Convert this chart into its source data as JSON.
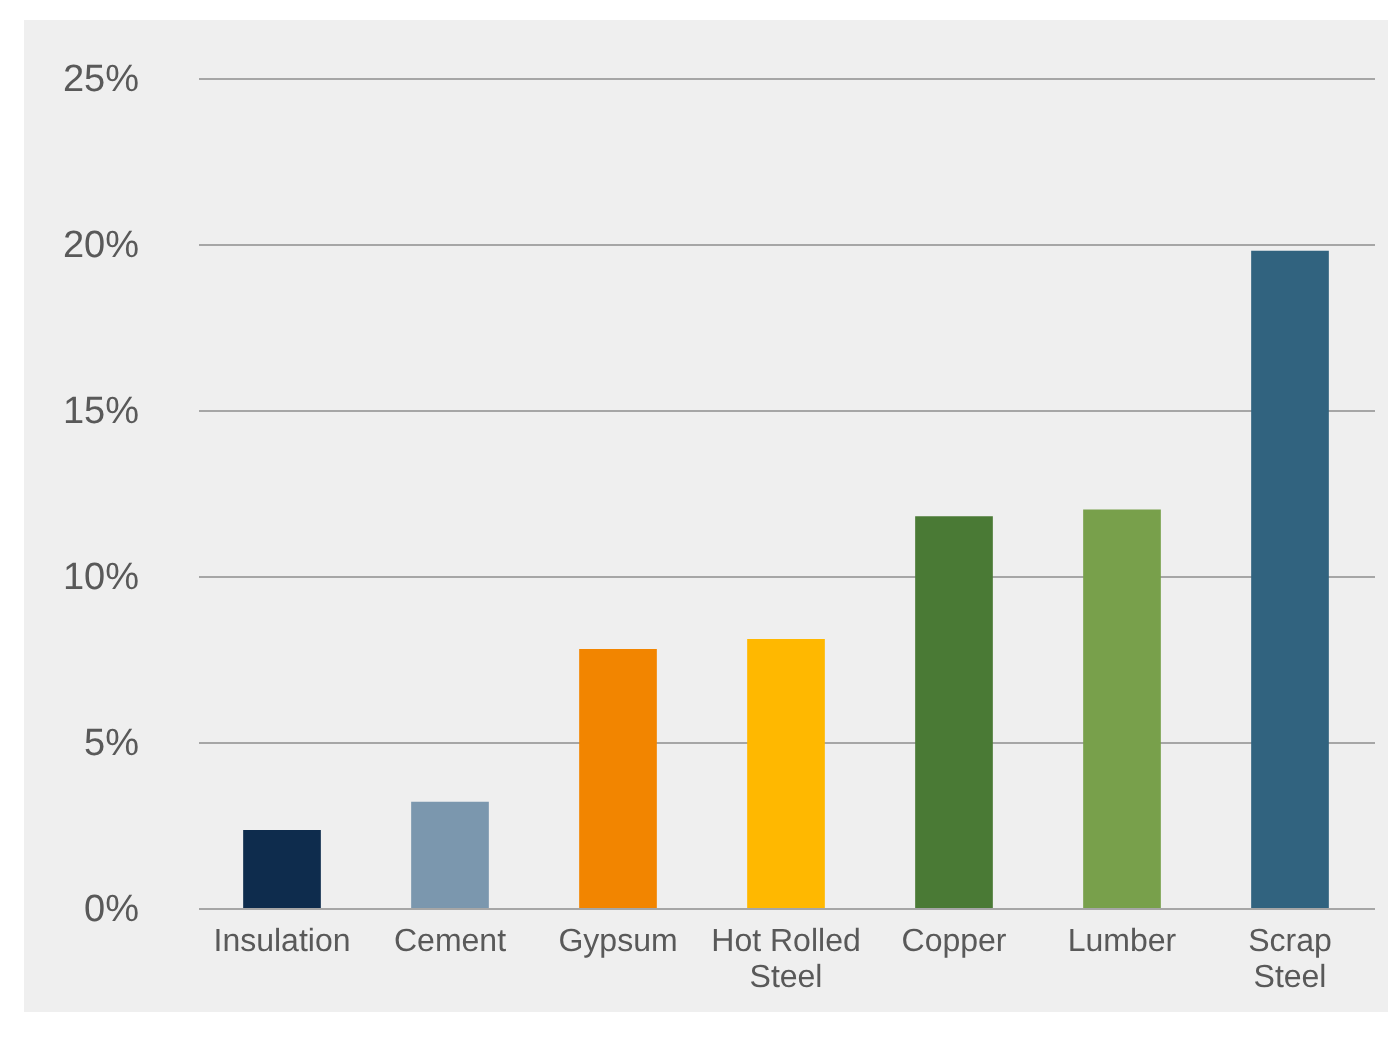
{
  "chart_data": {
    "type": "bar",
    "categories": [
      "Insulation",
      "Cement",
      "Gypsum",
      "Hot Rolled Steel",
      "Copper",
      "Lumber",
      "Scrap Steel"
    ],
    "values": [
      2.35,
      3.2,
      7.8,
      8.1,
      11.8,
      12.0,
      19.8
    ],
    "colors": [
      "#0e2c4d",
      "#7b97ae",
      "#f28500",
      "#ffb800",
      "#4a7a35",
      "#78a04b",
      "#31637f"
    ],
    "ylim": [
      0,
      25
    ],
    "yticks": [
      {
        "value": 0,
        "label": "0%"
      },
      {
        "value": 5,
        "label": "5%"
      },
      {
        "value": 10,
        "label": "10%"
      },
      {
        "value": 15,
        "label": "15%"
      },
      {
        "value": 20,
        "label": "20%"
      },
      {
        "value": 25,
        "label": "25%"
      }
    ],
    "grid": "y"
  }
}
